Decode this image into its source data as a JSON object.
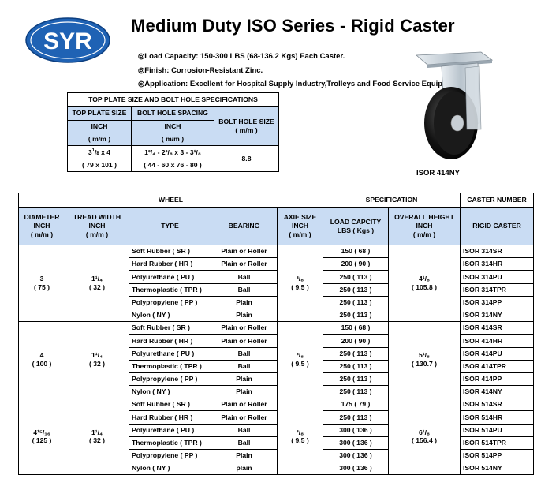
{
  "logo": {
    "text": "SYR",
    "color": "#1f62b4"
  },
  "title": "Medium Duty ISO Series - Rigid Caster",
  "specs": {
    "load": "◎Load Capacity: 150-300 LBS (68-136.2 Kgs) Each Caster.",
    "finish": "◎Finish: Corrosion-Resistant Zinc.",
    "application": "◎Application: Excellent for Hospital Supply Industry,Trolleys and Food Service Equipment."
  },
  "product_image_label": "ISOR 414NY",
  "top_plate": {
    "title": "TOP PLATE SIZE AND BOLT HOLE SPECIFICATIONS",
    "col1": {
      "h1": "TOP PLATE SIZE",
      "h2": "INCH",
      "h3": "( m/m )"
    },
    "col2": {
      "h1": "BOLT HOLE SPACING",
      "h2": "INCH",
      "h3": "( m/m )"
    },
    "col3": {
      "h1": "BOLT HOLE SIZE",
      "h2": "( m/m )"
    },
    "val1_inch": {
      "whole": "3",
      "num": "1",
      "den": "8",
      "rest": " x 4"
    },
    "val1_mm": "( 79 x 101 )",
    "val2_inch": "1³/₄ - 2³/₈ x 3 - 3¹/₈",
    "val2_mm": "( 44 - 60 x 76 - 80 )",
    "val3": "8.8"
  },
  "main_table": {
    "group_headers": {
      "wheel": "WHEEL",
      "specification": "SPECIFICATION",
      "caster_number": "CASTER NUMBER"
    },
    "headers": {
      "diameter": [
        "DIAMETER",
        "INCH",
        "( m/m )"
      ],
      "tread": [
        "TREAD WIDTH",
        "INCH",
        "( m/m )"
      ],
      "type": "TYPE",
      "bearing": "BEARING",
      "axle": [
        "AXIE SIZE",
        "INCH",
        "( m/m )"
      ],
      "load": [
        "LOAD CAPCITY",
        "LBS ( Kgs )"
      ],
      "height": [
        "OVERALL HEIGHT",
        "INCH",
        "( m/m )"
      ],
      "rigid": "RIGID CASTER"
    },
    "groups": [
      {
        "diameter_inch": "3",
        "diameter_mm": "( 75 )",
        "tread_inch": "1¹/₄",
        "tread_mm": "( 32 )",
        "axle_inch": "³/₈",
        "axle_mm": "( 9.5 )",
        "height_inch": "4¹/₈",
        "height_mm": "( 105.8 )",
        "rows": [
          {
            "type": "Soft Rubber ( SR )",
            "bearing": "Plain or Roller",
            "load": "150 ( 68 )",
            "model": "ISOR 314SR"
          },
          {
            "type": "Hard Rubber ( HR )",
            "bearing": "Plain or Roller",
            "load": "200 ( 90 )",
            "model": "ISOR 314HR"
          },
          {
            "type": "Polyurethane ( PU )",
            "bearing": "Ball",
            "load": "250 ( 113 )",
            "model": "ISOR 314PU"
          },
          {
            "type": "Thermoplastic ( TPR )",
            "bearing": "Ball",
            "load": "250 ( 113 )",
            "model": "ISOR 314TPR"
          },
          {
            "type": "Polypropylene ( PP )",
            "bearing": "Plain",
            "load": "250 ( 113 )",
            "model": "ISOR 314PP"
          },
          {
            "type": "Nylon ( NY )",
            "bearing": "Plain",
            "load": "250 ( 113 )",
            "model": "ISOR 314NY"
          }
        ]
      },
      {
        "diameter_inch": "4",
        "diameter_mm": "( 100 )",
        "tread_inch": "1¹/₄",
        "tread_mm": "( 32 )",
        "axle_inch": "³/₈",
        "axle_mm": "( 9.5 )",
        "height_inch": "5¹/₈",
        "height_mm": "( 130.7 )",
        "rows": [
          {
            "type": "Soft Rubber ( SR )",
            "bearing": "Plain or Roller",
            "load": "150 ( 68 )",
            "model": "ISOR 414SR"
          },
          {
            "type": "Hard Rubber ( HR )",
            "bearing": "Plain or Roller",
            "load": "200 ( 90 )",
            "model": "ISOR 414HR"
          },
          {
            "type": "Polyurethane ( PU )",
            "bearing": "Ball",
            "load": "250 ( 113 )",
            "model": "ISOR 414PU"
          },
          {
            "type": "Thermoplastic ( TPR )",
            "bearing": "Ball",
            "load": "250 ( 113 )",
            "model": "ISOR 414TPR"
          },
          {
            "type": "Polypropylene ( PP )",
            "bearing": "Plain",
            "load": "250 ( 113 )",
            "model": "ISOR 414PP"
          },
          {
            "type": "Nylon ( NY )",
            "bearing": "Plain",
            "load": "250 ( 113 )",
            "model": "ISOR 414NY"
          }
        ]
      },
      {
        "diameter_inch": "4¹⁵/₁₆",
        "diameter_mm": "( 125 )",
        "tread_inch": "1¹/₄",
        "tread_mm": "( 32 )",
        "axle_inch": "³/₈",
        "axle_mm": "( 9.5 )",
        "height_inch": "6¹/₈",
        "height_mm": "( 156.4 )",
        "rows": [
          {
            "type": "Soft Rubber ( SR )",
            "bearing": "Plain or Roller",
            "load": "175 ( 79 )",
            "model": "ISOR 514SR"
          },
          {
            "type": "Hard Rubber ( HR )",
            "bearing": "Plain or Roller",
            "load": "250 ( 113 )",
            "model": "ISOR 514HR"
          },
          {
            "type": "Polyurethane ( PU )",
            "bearing": "Ball",
            "load": "300 ( 136 )",
            "model": "ISOR 514PU"
          },
          {
            "type": "Thermoplastic ( TPR )",
            "bearing": "Ball",
            "load": "300 ( 136 )",
            "model": "ISOR 514TPR"
          },
          {
            "type": "Polypropylene ( PP )",
            "bearing": "Plain",
            "load": "300 ( 136 )",
            "model": "ISOR 514PP"
          },
          {
            "type": "Nylon ( NY )",
            "bearing": "plain",
            "load": "300 ( 136 )",
            "model": "ISOR 514NY"
          }
        ]
      }
    ]
  },
  "colors": {
    "header_bg": "#c9dcf3",
    "logo_blue": "#1f62b4"
  }
}
